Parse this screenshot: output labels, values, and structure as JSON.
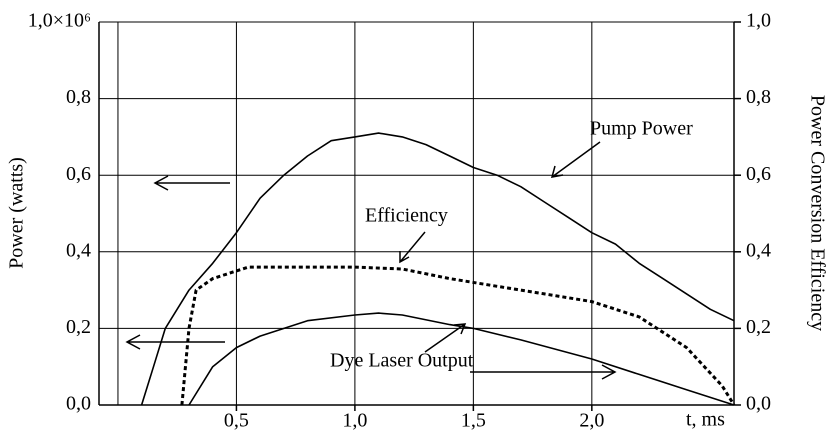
{
  "chart_data": {
    "type": "line",
    "ylabel": "Power (watts)",
    "y2label": "Power Conversion Efficiency",
    "xlabel": "t, ms",
    "xlim": [
      -0.08,
      2.6
    ],
    "xgrid": [
      0,
      0.5,
      1,
      1.5,
      2
    ],
    "xticks": [
      {
        "value": 0.5,
        "label": "0,5"
      },
      {
        "value": 1,
        "label": "1,0"
      },
      {
        "value": 1.5,
        "label": "1,5"
      },
      {
        "value": 2,
        "label": "2,0"
      }
    ],
    "ylim": [
      0,
      1000000
    ],
    "yticks": [
      {
        "value": 0,
        "label": "0,0"
      },
      {
        "value": 200000,
        "label": "0,2"
      },
      {
        "value": 400000,
        "label": "0,4"
      },
      {
        "value": 600000,
        "label": "0,6"
      },
      {
        "value": 800000,
        "label": "0,8"
      },
      {
        "value": 1000000,
        "label": "1,0×10⁶"
      }
    ],
    "y2lim": [
      0,
      1
    ],
    "y2ticks": [
      {
        "value": 0,
        "label": "0,0"
      },
      {
        "value": 0.2,
        "label": "0,2"
      },
      {
        "value": 0.4,
        "label": "0,4"
      },
      {
        "value": 0.6,
        "label": "0,6"
      },
      {
        "value": 0.8,
        "label": "0,8"
      },
      {
        "value": 1,
        "label": "1,0"
      }
    ],
    "grid": true,
    "series": [
      {
        "name": "Pump Power",
        "color": "#000000",
        "style": "solid",
        "x": [
          0.1,
          0.15,
          0.2,
          0.3,
          0.4,
          0.5,
          0.6,
          0.7,
          0.8,
          0.9,
          1.0,
          1.1,
          1.2,
          1.3,
          1.4,
          1.5,
          1.6,
          1.7,
          1.8,
          1.9,
          2.0,
          2.1,
          2.2,
          2.3,
          2.4,
          2.5,
          2.6
        ],
        "values": [
          0,
          100000,
          200000,
          300000,
          370000,
          450000,
          540000,
          600000,
          650000,
          690000,
          700000,
          710000,
          700000,
          680000,
          650000,
          620000,
          600000,
          570000,
          530000,
          490000,
          450000,
          420000,
          370000,
          330000,
          290000,
          250000,
          220000
        ]
      },
      {
        "name": "Efficiency",
        "color": "#000000",
        "style": "dashed",
        "axis": "y2",
        "x": [
          0.27,
          0.3,
          0.33,
          0.4,
          0.55,
          0.8,
          1.0,
          1.2,
          1.4,
          1.6,
          1.8,
          2.0,
          2.2,
          2.4,
          2.55,
          2.6
        ],
        "values": [
          0,
          0.2,
          0.3,
          0.33,
          0.36,
          0.36,
          0.36,
          0.355,
          0.33,
          0.31,
          0.29,
          0.27,
          0.23,
          0.15,
          0.05,
          0
        ]
      },
      {
        "name": "Dye Laser Output",
        "color": "#000000",
        "style": "solid",
        "x": [
          0.3,
          0.4,
          0.5,
          0.6,
          0.8,
          1.0,
          1.1,
          1.2,
          1.4,
          1.5,
          1.7,
          2.0,
          2.2,
          2.4,
          2.6
        ],
        "values": [
          0,
          100000,
          150000,
          180000,
          220000,
          235000,
          240000,
          235000,
          210000,
          200000,
          170000,
          120000,
          80000,
          40000,
          0
        ]
      }
    ]
  }
}
